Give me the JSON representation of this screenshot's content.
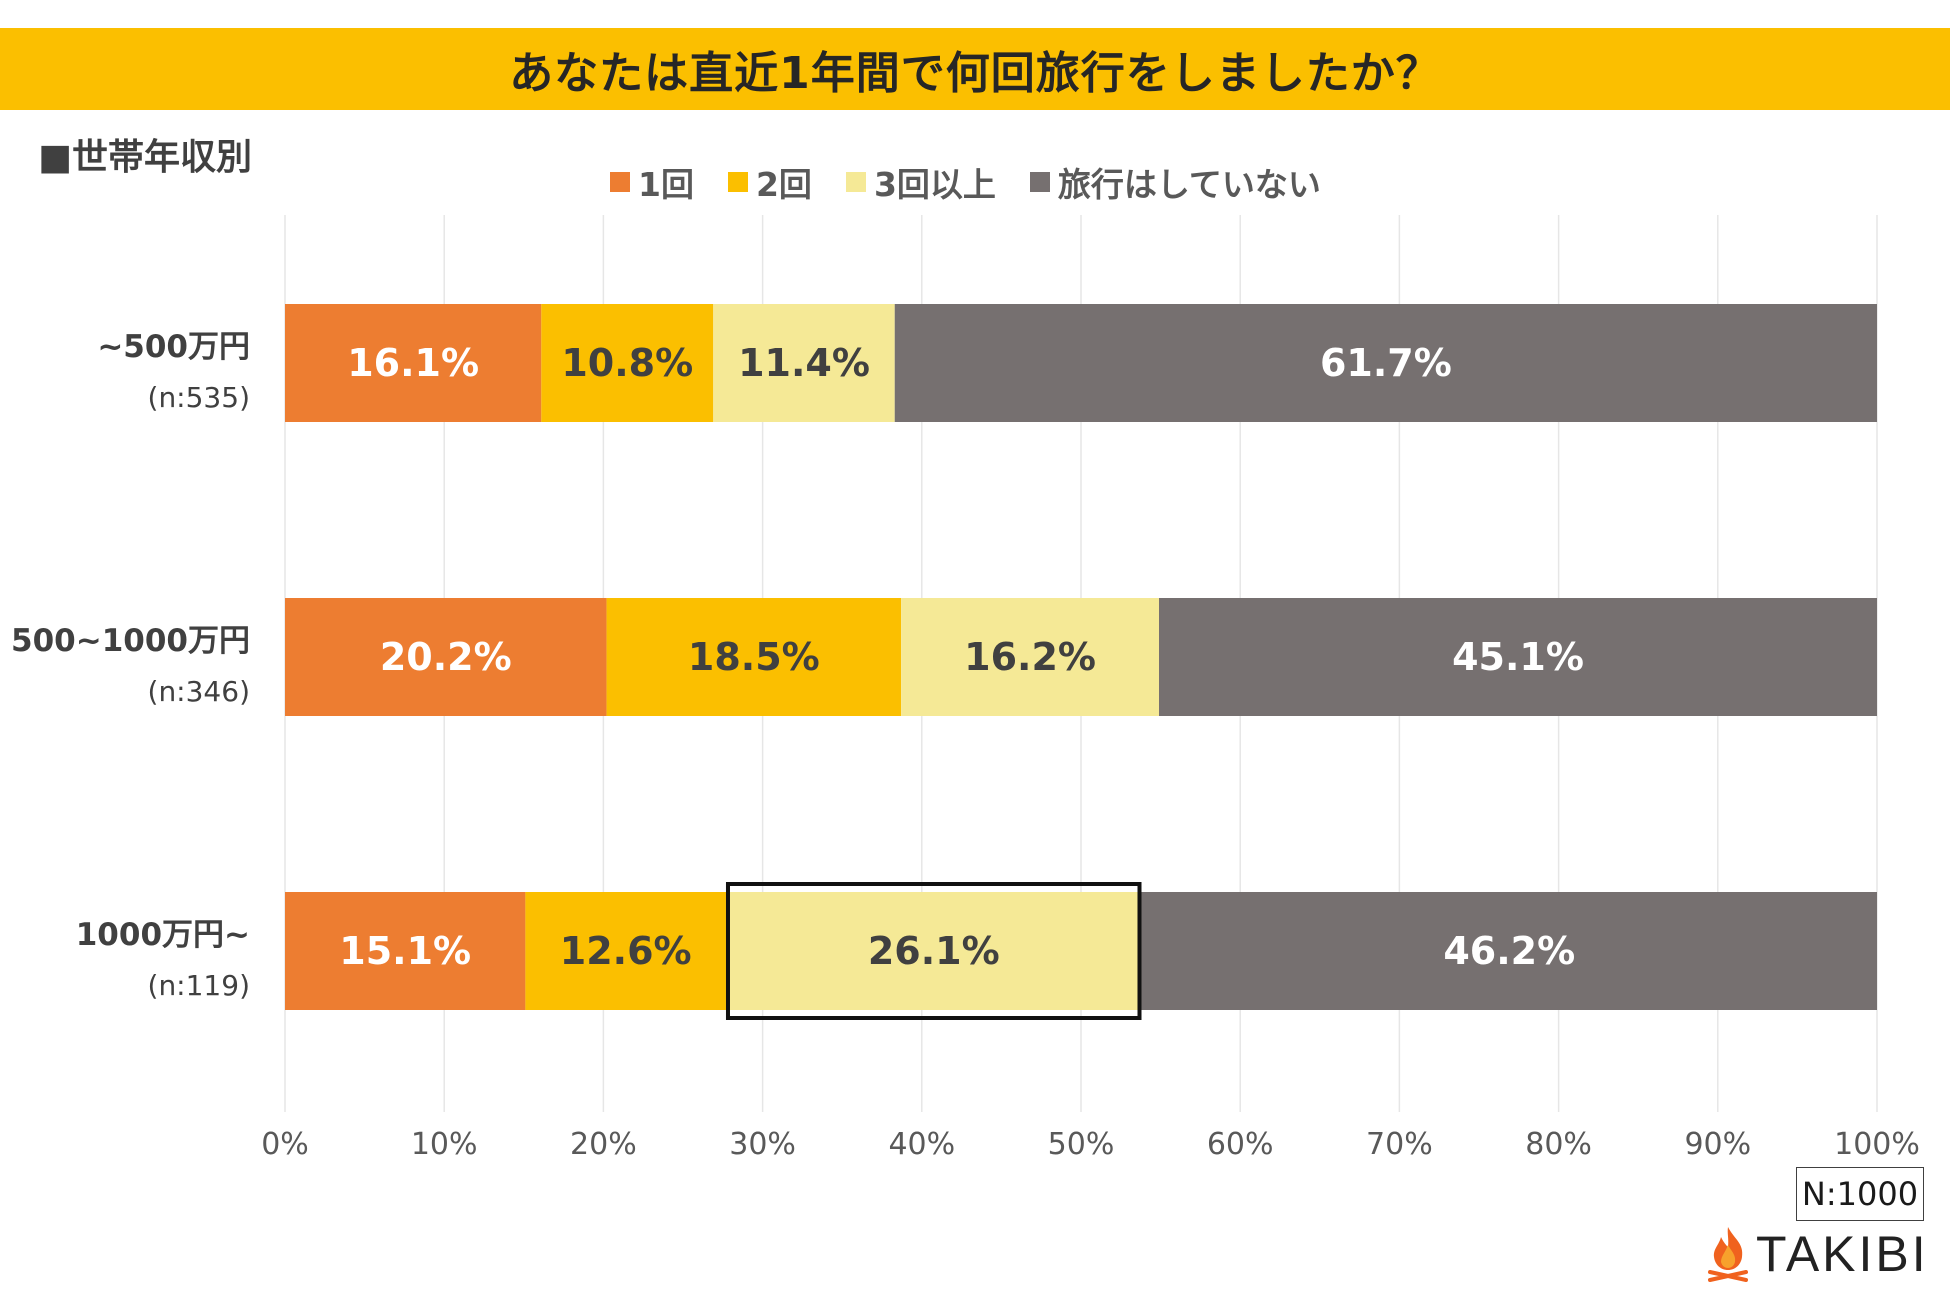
{
  "title": "あなたは直近1年間で何回旅行をしましたか？",
  "section_label": "■世帯年収別",
  "sample_note": "N:1000",
  "logo_text": "TAKIBI",
  "colors": {
    "title_bg": "#fbbf00",
    "series": [
      "#ed7d31",
      "#fbbf00",
      "#f5e996",
      "#767070"
    ],
    "label_light": "#ffffff",
    "label_dark": "#404040"
  },
  "chart_data": {
    "type": "bar",
    "orientation": "horizontal",
    "stacked": true,
    "title": "あなたは直近1年間で何回旅行をしましたか？",
    "xlabel": "",
    "ylabel": "",
    "xlim": [
      0,
      100
    ],
    "x_ticks": [
      "0%",
      "10%",
      "20%",
      "30%",
      "40%",
      "50%",
      "60%",
      "70%",
      "80%",
      "90%",
      "100%"
    ],
    "grid": true,
    "legend_position": "top",
    "categories": [
      {
        "label": "~500万円",
        "sublabel": "(n:535)"
      },
      {
        "label": "500~1000万円",
        "sublabel": "(n:346)"
      },
      {
        "label": "1000万円~",
        "sublabel": "(n:119)"
      }
    ],
    "series": [
      {
        "name": "1回",
        "values": [
          16.1,
          20.2,
          15.1
        ],
        "labels": [
          "16.1%",
          "20.2%",
          "15.1%"
        ]
      },
      {
        "name": "2回",
        "values": [
          10.8,
          18.5,
          12.6
        ],
        "labels": [
          "10.8%",
          "18.5%",
          "12.6%"
        ]
      },
      {
        "name": "3回以上",
        "values": [
          11.4,
          16.2,
          26.1
        ],
        "labels": [
          "11.4%",
          "16.2%",
          "26.1%"
        ]
      },
      {
        "name": "旅行はしていない",
        "values": [
          61.7,
          45.1,
          46.2
        ],
        "labels": [
          "61.7%",
          "45.1%",
          "46.2%"
        ]
      }
    ],
    "highlight": {
      "category_index": 2,
      "series_index": 2
    }
  }
}
